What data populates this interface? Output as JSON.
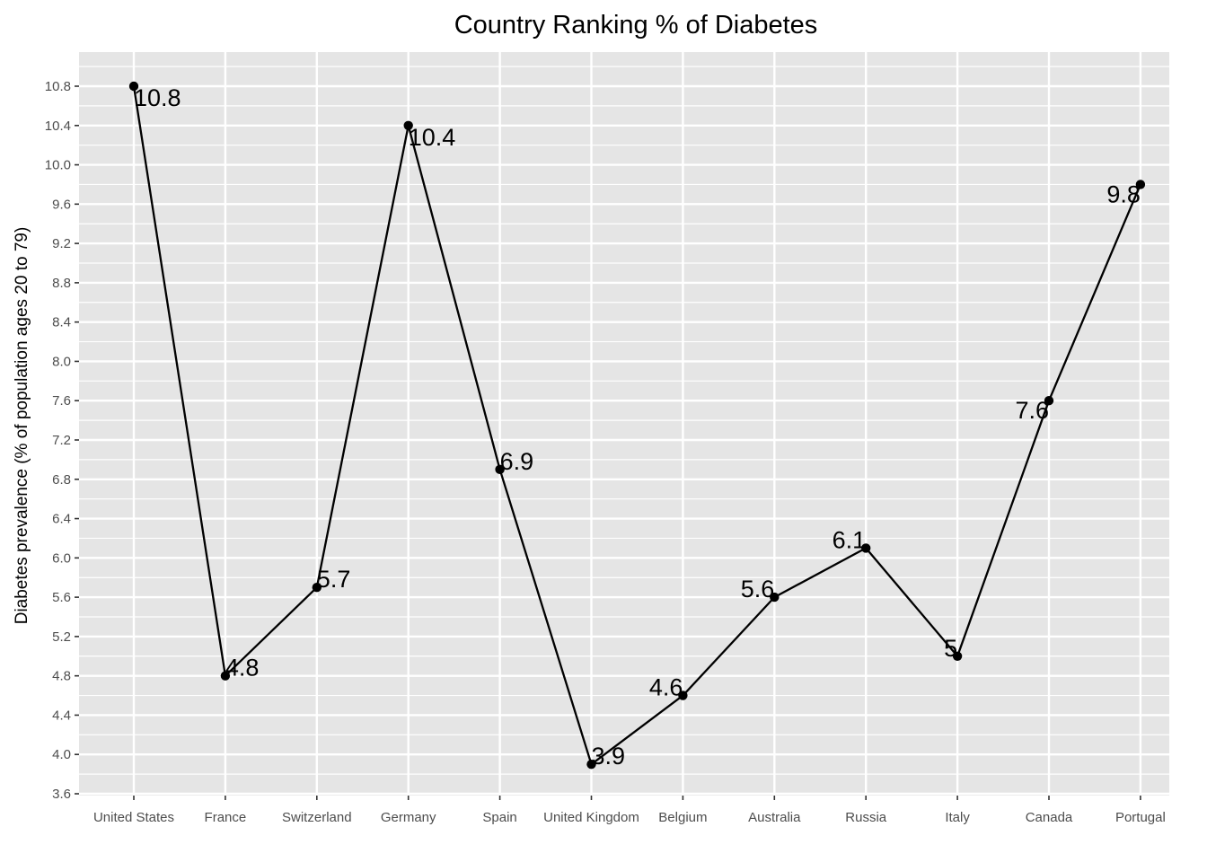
{
  "chart_data": {
    "type": "line",
    "title": "Country Ranking % of Diabetes",
    "xlabel": "",
    "ylabel": "Diabetes prevalence (% of population ages 20 to 79)",
    "categories": [
      "United States",
      "France",
      "Switzerland",
      "Germany",
      "Spain",
      "United Kingdom",
      "Belgium",
      "Australia",
      "Russia",
      "Italy",
      "Canada",
      "Portugal"
    ],
    "values": [
      10.8,
      4.8,
      5.7,
      10.4,
      6.9,
      3.9,
      4.6,
      5.6,
      6.1,
      5.0,
      7.6,
      9.8
    ],
    "data_labels": [
      "10.8",
      "4.8",
      "5.7",
      "10.4",
      "6.9",
      "3.9",
      "4.6",
      "5.6",
      "6.1",
      "5",
      "7.6",
      "9.8"
    ],
    "ylim": [
      3.6,
      11.0
    ],
    "yticks": [
      3.6,
      4.0,
      4.4,
      4.8,
      5.2,
      5.6,
      6.0,
      6.4,
      6.8,
      7.2,
      7.6,
      8.0,
      8.4,
      8.8,
      9.2,
      9.6,
      10.0,
      10.4,
      10.8
    ],
    "ytick_labels": [
      "3.6",
      "4.0",
      "4.4",
      "4.8",
      "5.2",
      "5.6",
      "6.0",
      "6.4",
      "6.8",
      "7.2",
      "7.6",
      "8.0",
      "8.4",
      "8.8",
      "9.2",
      "9.6",
      "10.0",
      "10.4",
      "10.8"
    ],
    "grid": true,
    "legend": "none",
    "colors": {
      "panel": "#e5e5e5",
      "grid": "#ffffff",
      "line": "#000000",
      "point": "#000000",
      "tick": "#333333"
    }
  }
}
